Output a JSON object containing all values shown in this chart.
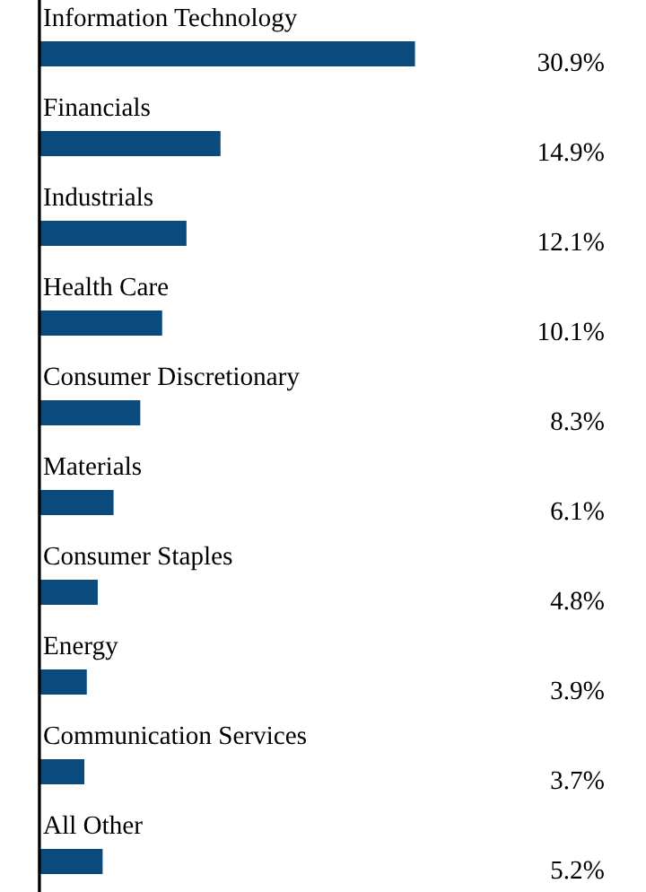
{
  "chart_data": {
    "type": "bar",
    "orientation": "horizontal",
    "categories": [
      "Information Technology",
      "Financials",
      "Industrials",
      "Health Care",
      "Consumer Discretionary",
      "Materials",
      "Consumer Staples",
      "Energy",
      "Communication Services",
      "All Other"
    ],
    "values": [
      30.9,
      14.9,
      12.1,
      10.1,
      8.3,
      6.1,
      4.8,
      3.9,
      3.7,
      5.2
    ],
    "value_labels": [
      "30.9%",
      "14.9%",
      "12.1%",
      "10.1%",
      "8.3%",
      "6.1%",
      "4.8%",
      "3.9%",
      "3.7%",
      "5.2%"
    ],
    "color": "#0b4a7d"
  }
}
